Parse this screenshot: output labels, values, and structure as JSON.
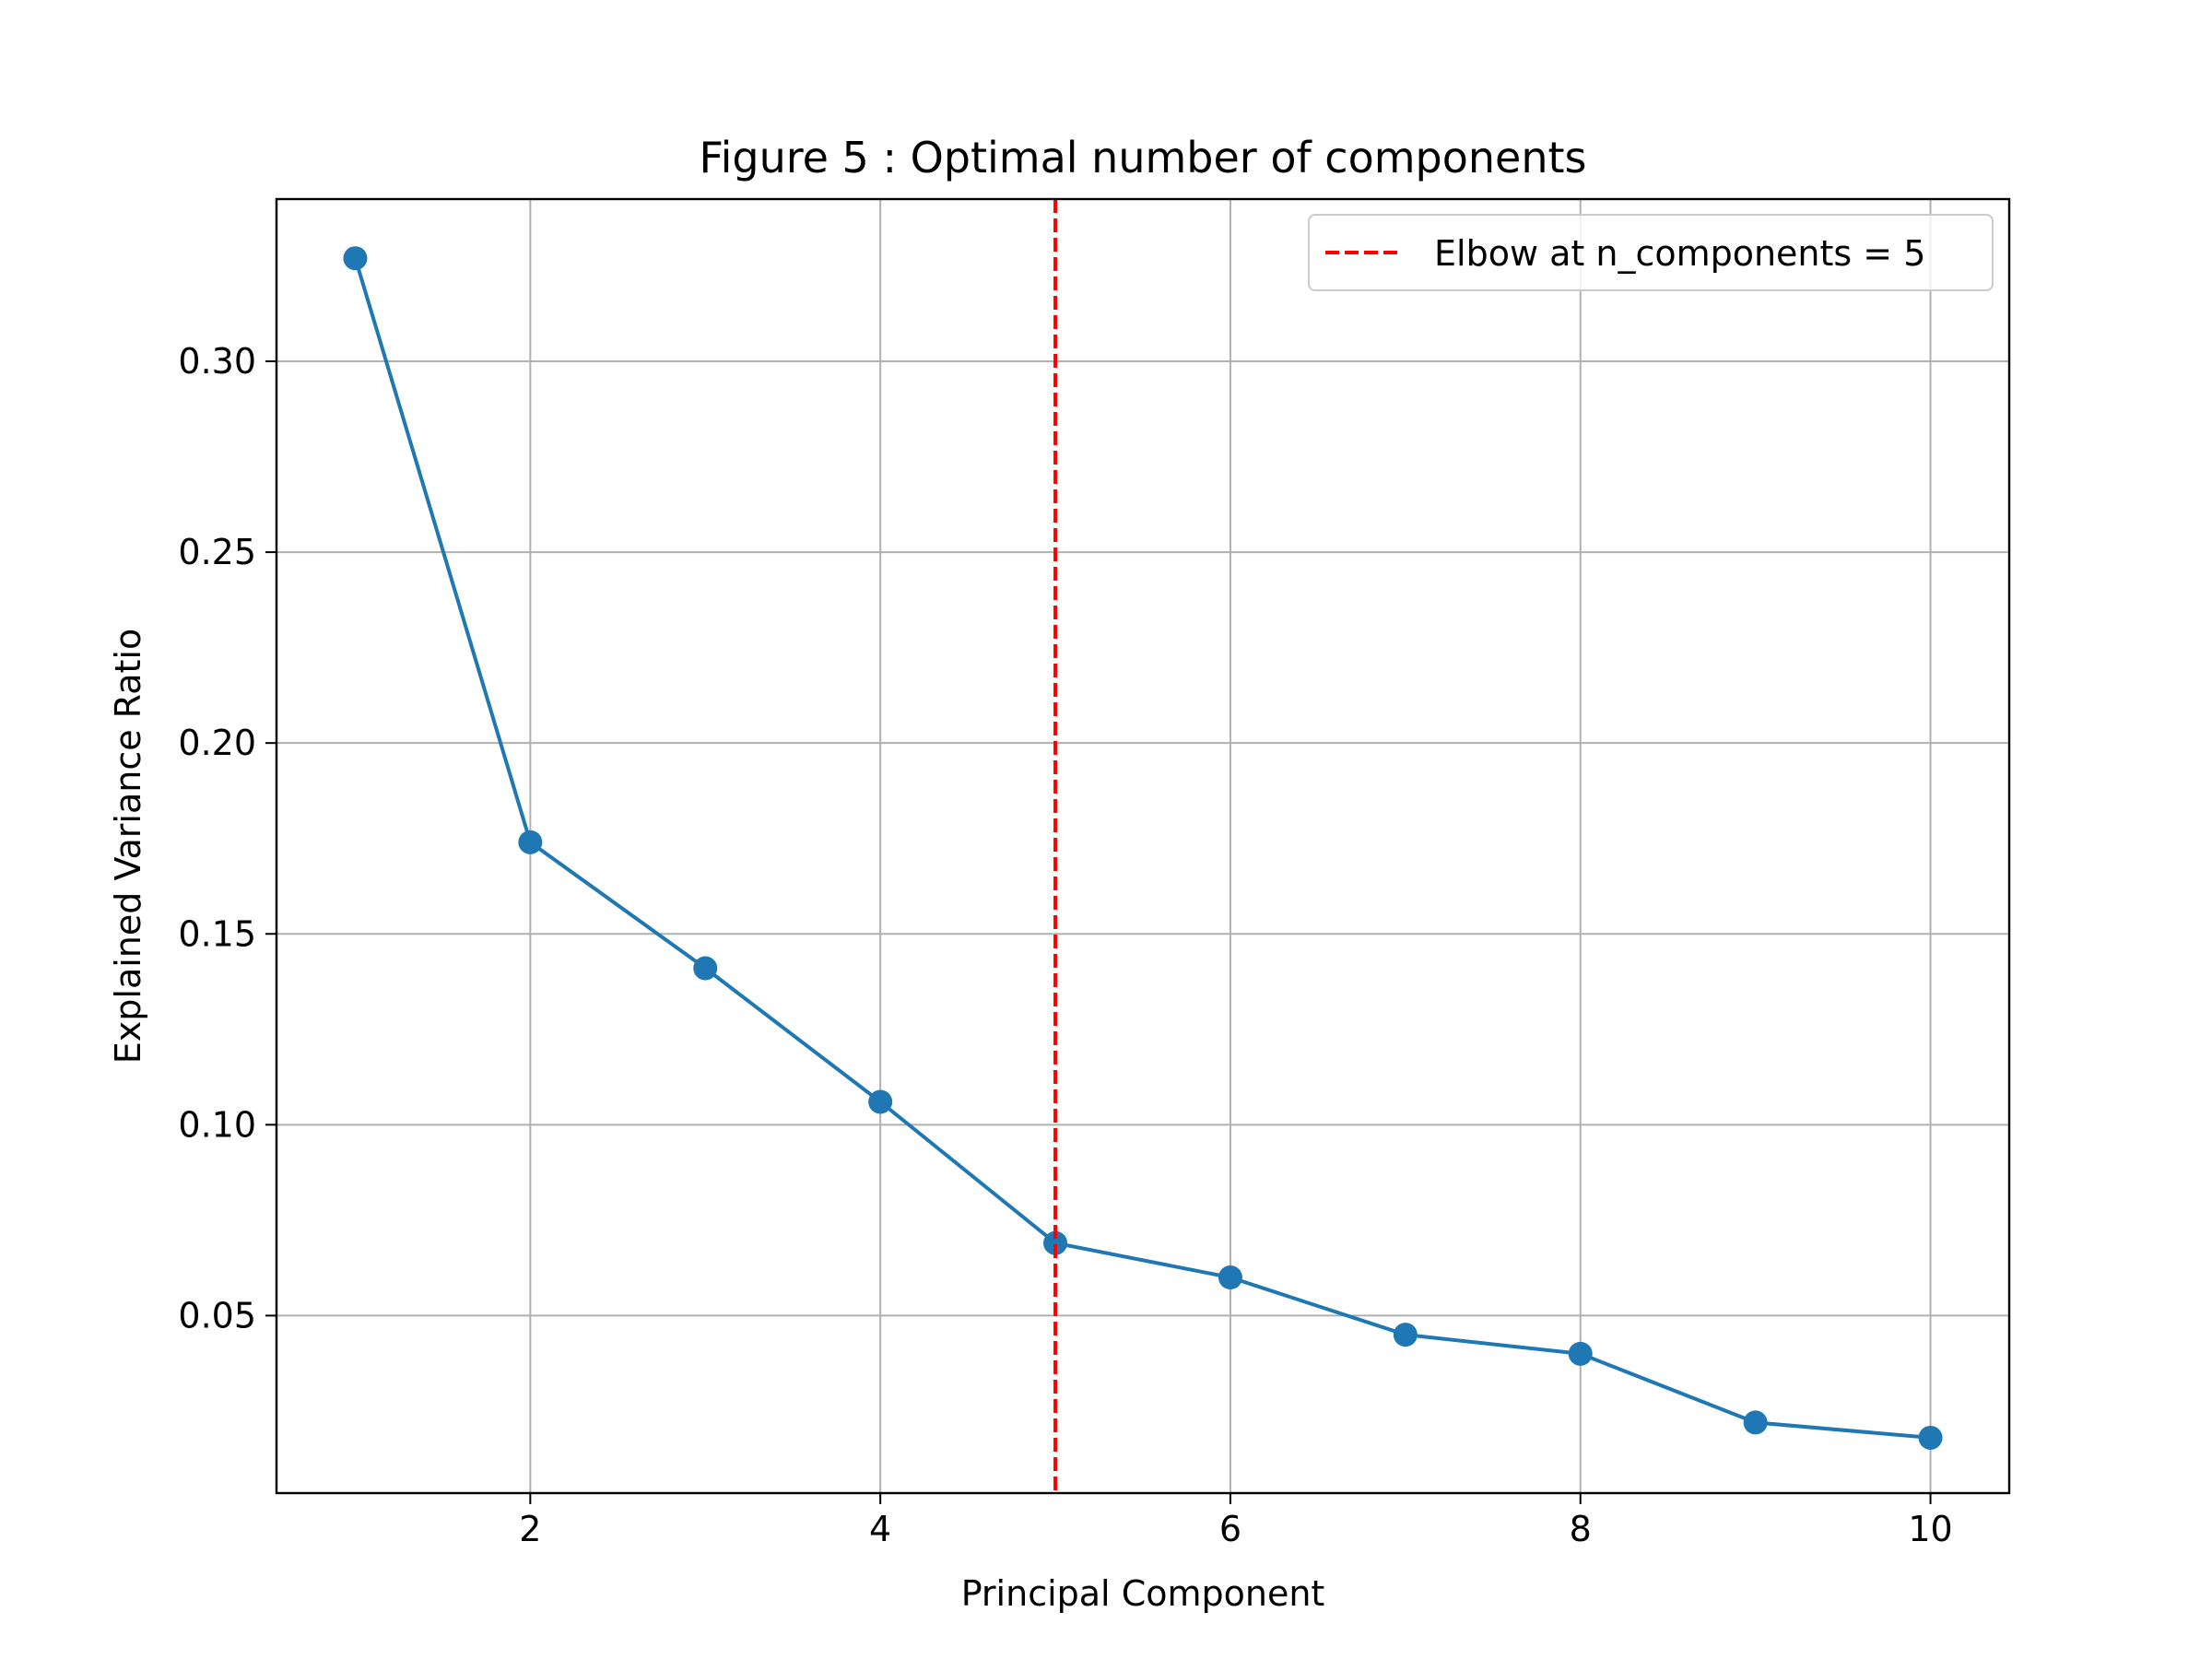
{
  "chart_data": {
    "type": "line",
    "title": "Figure 5 : Optimal number of components",
    "xlabel": "Principal Component",
    "ylabel": "Explained Variance Ratio",
    "x": [
      1,
      2,
      3,
      4,
      5,
      6,
      7,
      8,
      9,
      10
    ],
    "series": [
      {
        "values": [
          0.327,
          0.174,
          0.141,
          0.106,
          0.069,
          0.06,
          0.045,
          0.04,
          0.022,
          0.018
        ],
        "color": "#1f77b4",
        "marker": "circle"
      }
    ],
    "xlim": [
      0.55,
      10.45
    ],
    "ylim": [
      0.0035,
      0.3425
    ],
    "xticks": [
      2,
      4,
      6,
      8,
      10
    ],
    "xtick_labels": [
      "2",
      "4",
      "6",
      "8",
      "10"
    ],
    "yticks": [
      0.05,
      0.1,
      0.15,
      0.2,
      0.25,
      0.3
    ],
    "ytick_labels": [
      "0.05",
      "0.10",
      "0.15",
      "0.20",
      "0.25",
      "0.30"
    ],
    "grid": true,
    "vline": {
      "x": 5,
      "color": "#ff0000",
      "style": "dashed",
      "label": "Elbow at n_components = 5"
    },
    "legend": {
      "placement": "top-right",
      "entries": [
        "Elbow at n_components = 5"
      ]
    }
  }
}
